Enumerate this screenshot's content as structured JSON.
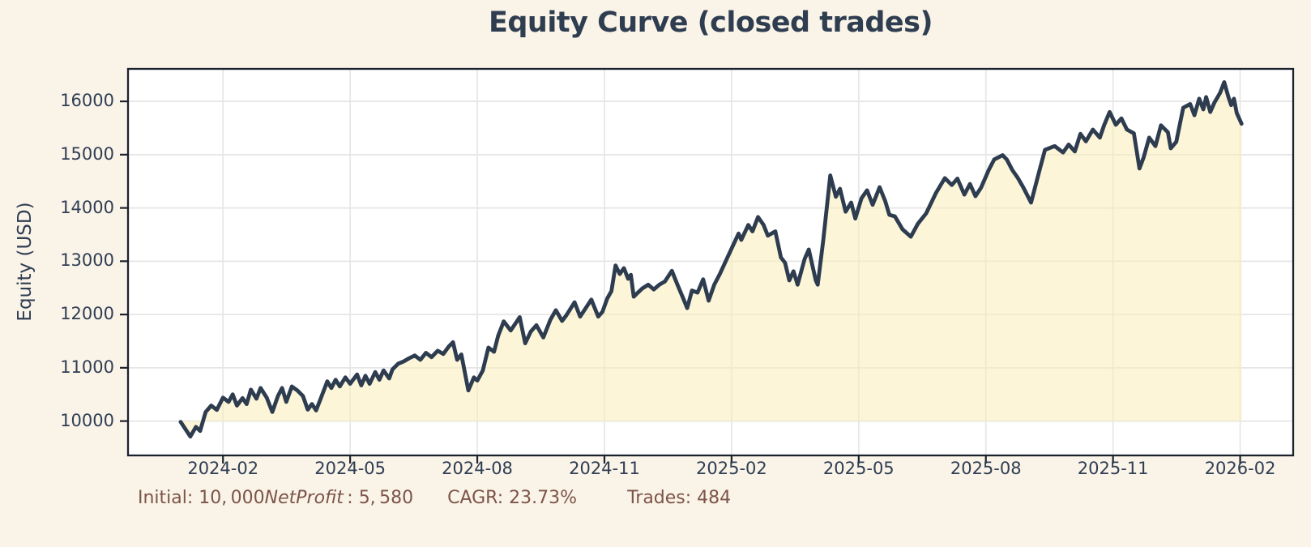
{
  "footer": {
    "initial": "Initial: 10, 000",
    "math_italic": "NetProfit",
    "net_profit": " : 5, 580",
    "cagr": "CAGR: 23.73%",
    "trades": "Trades: 484"
  },
  "chart_data": {
    "type": "area",
    "title": "Equity Curve (closed trades)",
    "xlabel": "",
    "ylabel": "Equity (USD)",
    "legend": null,
    "grid": true,
    "baseline": 10000,
    "ylim": [
      9340,
      16625
    ],
    "xlim_months_from_2024_01": [
      -1.26,
      26.27
    ],
    "y_ticks": [
      10000,
      11000,
      12000,
      13000,
      14000,
      15000,
      16000
    ],
    "x_ticks_months": [
      1,
      4,
      7,
      10,
      13,
      16,
      19,
      22,
      25
    ],
    "x_tick_labels": [
      "2024-02",
      "2024-05",
      "2024-08",
      "2024-11",
      "2025-02",
      "2025-05",
      "2025-08",
      "2025-11",
      "2026-02"
    ],
    "colors": {
      "figure_bg": "#faf3e8",
      "plot_bg": "#ffffff",
      "grid": "#e6e6e6",
      "spine": "#1c222e",
      "line": "#2e3c50",
      "fill": "rgba(250,236,184,0.55)",
      "tick_text": "#2f3e53",
      "title_text": "#2e3d50",
      "footer_text": "#7d5449"
    },
    "series": [
      {
        "name": "equity",
        "points": [
          [
            "2024-01-01",
            9985
          ],
          [
            "2024-01-08",
            9710
          ],
          [
            "2024-01-12",
            9890
          ],
          [
            "2024-01-15",
            9815
          ],
          [
            "2024-01-19",
            10170
          ],
          [
            "2024-01-23",
            10290
          ],
          [
            "2024-01-27",
            10210
          ],
          [
            "2024-02-01",
            10440
          ],
          [
            "2024-02-05",
            10360
          ],
          [
            "2024-02-08",
            10500
          ],
          [
            "2024-02-11",
            10290
          ],
          [
            "2024-02-15",
            10430
          ],
          [
            "2024-02-18",
            10320
          ],
          [
            "2024-02-21",
            10590
          ],
          [
            "2024-02-25",
            10420
          ],
          [
            "2024-02-28",
            10620
          ],
          [
            "2024-03-02",
            10440
          ],
          [
            "2024-03-06",
            10170
          ],
          [
            "2024-03-10",
            10470
          ],
          [
            "2024-03-13",
            10620
          ],
          [
            "2024-03-16",
            10360
          ],
          [
            "2024-03-20",
            10650
          ],
          [
            "2024-03-24",
            10575
          ],
          [
            "2024-03-28",
            10470
          ],
          [
            "2024-04-01",
            10215
          ],
          [
            "2024-04-04",
            10320
          ],
          [
            "2024-04-07",
            10200
          ],
          [
            "2024-04-11",
            10470
          ],
          [
            "2024-04-15",
            10745
          ],
          [
            "2024-04-18",
            10620
          ],
          [
            "2024-04-21",
            10775
          ],
          [
            "2024-04-24",
            10650
          ],
          [
            "2024-04-28",
            10820
          ],
          [
            "2024-05-01",
            10700
          ],
          [
            "2024-05-06",
            10875
          ],
          [
            "2024-05-09",
            10670
          ],
          [
            "2024-05-12",
            10850
          ],
          [
            "2024-05-15",
            10700
          ],
          [
            "2024-05-19",
            10920
          ],
          [
            "2024-05-22",
            10775
          ],
          [
            "2024-05-25",
            10950
          ],
          [
            "2024-05-29",
            10800
          ],
          [
            "2024-06-01",
            10970
          ],
          [
            "2024-06-05",
            11075
          ],
          [
            "2024-06-09",
            11120
          ],
          [
            "2024-06-13",
            11180
          ],
          [
            "2024-06-17",
            11230
          ],
          [
            "2024-06-21",
            11150
          ],
          [
            "2024-06-25",
            11280
          ],
          [
            "2024-06-29",
            11200
          ],
          [
            "2024-07-03",
            11320
          ],
          [
            "2024-07-07",
            11260
          ],
          [
            "2024-07-11",
            11400
          ],
          [
            "2024-07-14",
            11480
          ],
          [
            "2024-07-17",
            11150
          ],
          [
            "2024-07-20",
            11250
          ],
          [
            "2024-07-25",
            10575
          ],
          [
            "2024-07-29",
            10820
          ],
          [
            "2024-08-01",
            10760
          ],
          [
            "2024-08-05",
            10950
          ],
          [
            "2024-08-09",
            11380
          ],
          [
            "2024-08-13",
            11300
          ],
          [
            "2024-08-16",
            11600
          ],
          [
            "2024-08-20",
            11870
          ],
          [
            "2024-08-25",
            11700
          ],
          [
            "2024-09-01",
            11950
          ],
          [
            "2024-09-05",
            11460
          ],
          [
            "2024-09-09",
            11680
          ],
          [
            "2024-09-13",
            11800
          ],
          [
            "2024-09-18",
            11570
          ],
          [
            "2024-09-23",
            11900
          ],
          [
            "2024-09-27",
            12080
          ],
          [
            "2024-10-01",
            11880
          ],
          [
            "2024-10-04",
            11980
          ],
          [
            "2024-10-10",
            12230
          ],
          [
            "2024-10-14",
            11960
          ],
          [
            "2024-10-18",
            12120
          ],
          [
            "2024-10-22",
            12280
          ],
          [
            "2024-10-27",
            11960
          ],
          [
            "2024-10-30",
            12050
          ],
          [
            "2024-11-03",
            12300
          ],
          [
            "2024-11-06",
            12440
          ],
          [
            "2024-11-09",
            12920
          ],
          [
            "2024-11-12",
            12760
          ],
          [
            "2024-11-15",
            12870
          ],
          [
            "2024-11-18",
            12670
          ],
          [
            "2024-11-20",
            12745
          ],
          [
            "2024-11-22",
            12335
          ],
          [
            "2024-11-25",
            12410
          ],
          [
            "2024-11-28",
            12485
          ],
          [
            "2024-12-02",
            12560
          ],
          [
            "2024-12-06",
            12470
          ],
          [
            "2024-12-10",
            12560
          ],
          [
            "2024-12-14",
            12620
          ],
          [
            "2024-12-19",
            12820
          ],
          [
            "2024-12-23",
            12560
          ],
          [
            "2024-12-27",
            12310
          ],
          [
            "2024-12-30",
            12120
          ],
          [
            "2025-01-03",
            12450
          ],
          [
            "2025-01-07",
            12410
          ],
          [
            "2025-01-11",
            12660
          ],
          [
            "2025-01-15",
            12260
          ],
          [
            "2025-01-19",
            12560
          ],
          [
            "2025-01-23",
            12760
          ],
          [
            "2025-01-29",
            13100
          ],
          [
            "2025-02-06",
            13520
          ],
          [
            "2025-02-08",
            13400
          ],
          [
            "2025-02-13",
            13680
          ],
          [
            "2025-02-16",
            13560
          ],
          [
            "2025-02-20",
            13830
          ],
          [
            "2025-02-24",
            13680
          ],
          [
            "2025-02-27",
            13480
          ],
          [
            "2025-03-02",
            13560
          ],
          [
            "2025-03-06",
            13070
          ],
          [
            "2025-03-09",
            12970
          ],
          [
            "2025-03-12",
            12640
          ],
          [
            "2025-03-15",
            12810
          ],
          [
            "2025-03-18",
            12560
          ],
          [
            "2025-03-23",
            13040
          ],
          [
            "2025-03-26",
            13220
          ],
          [
            "2025-03-31",
            12640
          ],
          [
            "2025-04-02",
            12560
          ],
          [
            "2025-04-06",
            13400
          ],
          [
            "2025-04-11",
            14610
          ],
          [
            "2025-04-15",
            14210
          ],
          [
            "2025-04-18",
            14360
          ],
          [
            "2025-04-22",
            13930
          ],
          [
            "2025-04-26",
            14100
          ],
          [
            "2025-04-29",
            13800
          ],
          [
            "2025-05-03",
            14180
          ],
          [
            "2025-05-07",
            14330
          ],
          [
            "2025-05-11",
            14060
          ],
          [
            "2025-05-16",
            14390
          ],
          [
            "2025-05-20",
            14130
          ],
          [
            "2025-05-23",
            13870
          ],
          [
            "2025-05-27",
            13840
          ],
          [
            "2025-06-02",
            13600
          ],
          [
            "2025-06-08",
            13460
          ],
          [
            "2025-06-13",
            13700
          ],
          [
            "2025-06-19",
            13900
          ],
          [
            "2025-06-26",
            14280
          ],
          [
            "2025-07-02",
            14560
          ],
          [
            "2025-07-07",
            14430
          ],
          [
            "2025-07-11",
            14550
          ],
          [
            "2025-07-16",
            14250
          ],
          [
            "2025-07-20",
            14450
          ],
          [
            "2025-07-24",
            14220
          ],
          [
            "2025-07-28",
            14380
          ],
          [
            "2025-08-03",
            14710
          ],
          [
            "2025-08-07",
            14910
          ],
          [
            "2025-08-13",
            14990
          ],
          [
            "2025-08-16",
            14910
          ],
          [
            "2025-08-20",
            14710
          ],
          [
            "2025-08-24",
            14560
          ],
          [
            "2025-08-28",
            14380
          ],
          [
            "2025-09-03",
            14100
          ],
          [
            "2025-09-09",
            14700
          ],
          [
            "2025-09-13",
            15090
          ],
          [
            "2025-09-20",
            15160
          ],
          [
            "2025-09-26",
            15040
          ],
          [
            "2025-09-30",
            15190
          ],
          [
            "2025-10-04",
            15060
          ],
          [
            "2025-10-08",
            15390
          ],
          [
            "2025-10-12",
            15250
          ],
          [
            "2025-10-17",
            15470
          ],
          [
            "2025-10-22",
            15320
          ],
          [
            "2025-10-25",
            15550
          ],
          [
            "2025-10-29",
            15800
          ],
          [
            "2025-11-03",
            15560
          ],
          [
            "2025-11-07",
            15680
          ],
          [
            "2025-11-11",
            15470
          ],
          [
            "2025-11-16",
            15400
          ],
          [
            "2025-11-20",
            14740
          ],
          [
            "2025-11-23",
            14950
          ],
          [
            "2025-11-27",
            15320
          ],
          [
            "2025-12-01",
            15160
          ],
          [
            "2025-12-05",
            15550
          ],
          [
            "2025-12-10",
            15420
          ],
          [
            "2025-12-12",
            15120
          ],
          [
            "2025-12-16",
            15240
          ],
          [
            "2025-12-21",
            15880
          ],
          [
            "2025-12-26",
            15950
          ],
          [
            "2025-12-29",
            15740
          ],
          [
            "2026-01-02",
            16050
          ],
          [
            "2026-01-05",
            15850
          ],
          [
            "2026-01-07",
            16080
          ],
          [
            "2026-01-10",
            15800
          ],
          [
            "2026-01-13",
            15980
          ],
          [
            "2026-01-17",
            16160
          ],
          [
            "2026-01-20",
            16360
          ],
          [
            "2026-01-23",
            16080
          ],
          [
            "2026-01-25",
            15930
          ],
          [
            "2026-01-27",
            16050
          ],
          [
            "2026-01-29",
            15780
          ],
          [
            "2026-02-02",
            15580
          ]
        ]
      }
    ]
  }
}
